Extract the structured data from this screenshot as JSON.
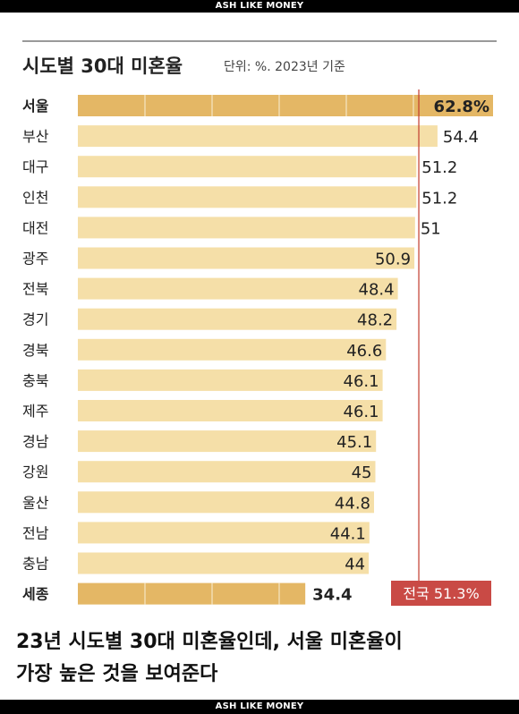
{
  "header": {
    "brand": "ASH LIKE MONEY"
  },
  "footer": {
    "brand": "ASH LIKE MONEY"
  },
  "chart_data": {
    "type": "bar",
    "orientation": "horizontal",
    "title": "시도별 30대 미혼율",
    "subtitle": "단위: %. 2023년 기준",
    "categories": [
      "서울",
      "부산",
      "대구",
      "인천",
      "대전",
      "광주",
      "전북",
      "경기",
      "경북",
      "충북",
      "제주",
      "경남",
      "강원",
      "울산",
      "전남",
      "충남",
      "세종"
    ],
    "values": [
      62.8,
      54.4,
      51.2,
      51.2,
      51,
      50.9,
      48.4,
      48.2,
      46.6,
      46.1,
      46.1,
      45.1,
      45,
      44.8,
      44.1,
      44,
      34.4
    ],
    "value_labels": [
      "62.8%",
      "54.4",
      "51.2",
      "51.2",
      "51",
      "50.9",
      "48.4",
      "48.2",
      "46.6",
      "46.1",
      "46.1",
      "45.1",
      "45",
      "44.8",
      "44.1",
      "44",
      "34.4"
    ],
    "highlighted": [
      "서울",
      "세종"
    ],
    "reference_line": {
      "label": "전국 51.3%",
      "value": 51.3
    },
    "colors": {
      "bar": "#F5DFA8",
      "bar_highlight": "#E4B765",
      "reference": "#C0392B",
      "reference_label_bg": "#C94A45"
    },
    "grid": false
  },
  "caption": {
    "line1": "23년 시도별 30대 미혼율인데, 서울 미혼율이",
    "line2": "가장 높은 것을 보여준다"
  }
}
